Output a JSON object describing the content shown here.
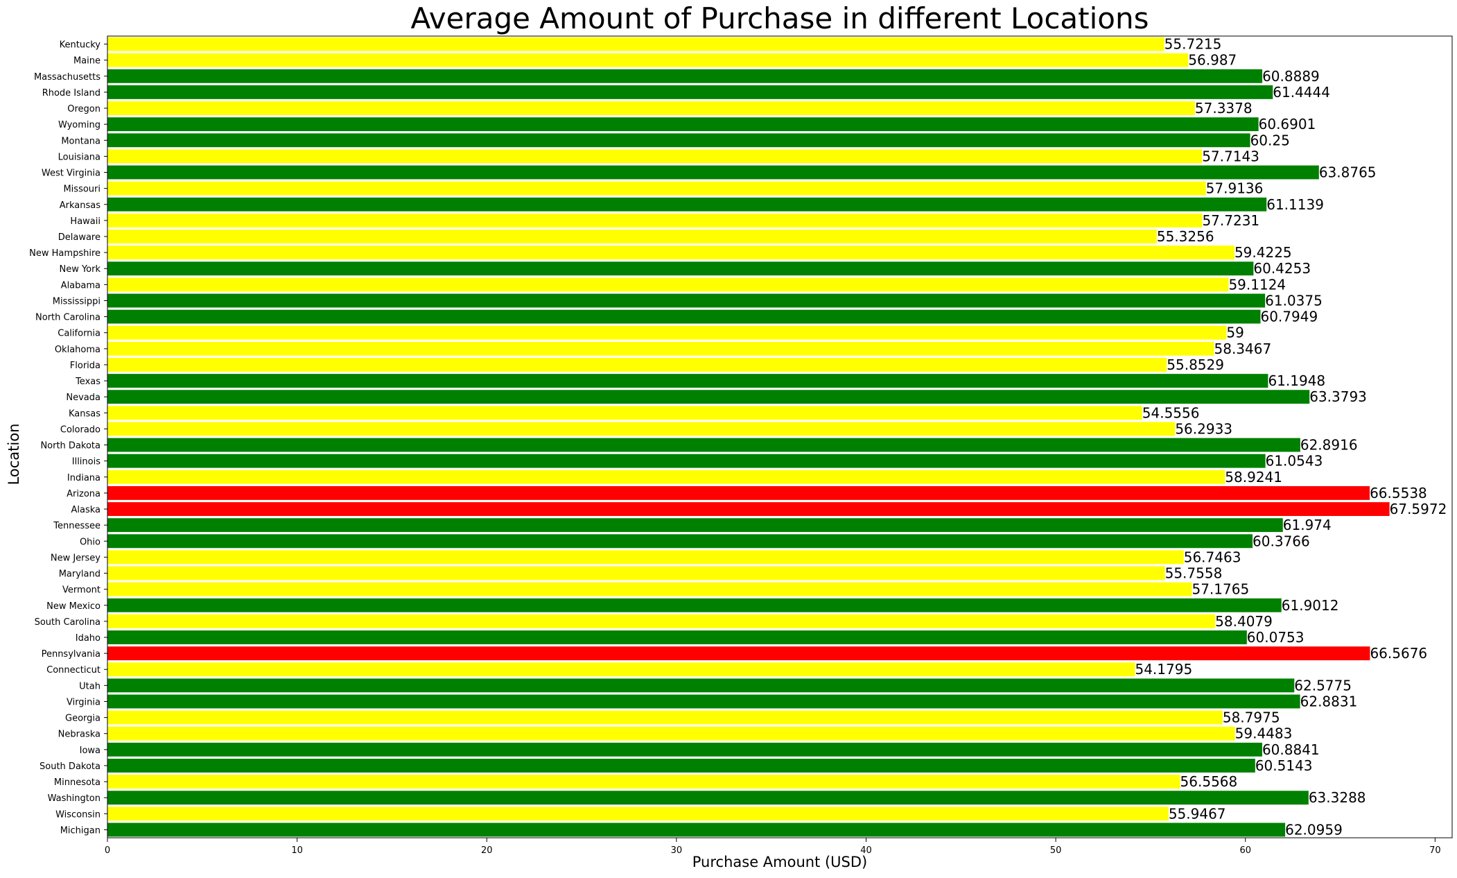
{
  "chart_data": {
    "type": "bar",
    "orientation": "horizontal",
    "title": "Average Amount of Purchase in different Locations",
    "xlabel": "Purchase Amount (USD)",
    "ylabel": "Location",
    "xlim": [
      0,
      70.9
    ],
    "xticks": [
      0,
      10,
      20,
      30,
      40,
      50,
      60,
      70
    ],
    "grid": false,
    "legend": "none",
    "colors": {
      "high": "#ff0000",
      "mid": "#008000",
      "low": "#ffff00"
    },
    "categories": [
      "Kentucky",
      "Maine",
      "Massachusetts",
      "Rhode Island",
      "Oregon",
      "Wyoming",
      "Montana",
      "Louisiana",
      "West Virginia",
      "Missouri",
      "Arkansas",
      "Hawaii",
      "Delaware",
      "New Hampshire",
      "New York",
      "Alabama",
      "Mississippi",
      "North Carolina",
      "California",
      "Oklahoma",
      "Florida",
      "Texas",
      "Nevada",
      "Kansas",
      "Colorado",
      "North Dakota",
      "Illinois",
      "Indiana",
      "Arizona",
      "Alaska",
      "Tennessee",
      "Ohio",
      "New Jersey",
      "Maryland",
      "Vermont",
      "New Mexico",
      "South Carolina",
      "Idaho",
      "Pennsylvania",
      "Connecticut",
      "Utah",
      "Virginia",
      "Georgia",
      "Nebraska",
      "Iowa",
      "South Dakota",
      "Minnesota",
      "Washington",
      "Wisconsin",
      "Michigan"
    ],
    "values": [
      55.7215,
      56.987,
      60.8889,
      61.4444,
      57.3378,
      60.6901,
      60.25,
      57.7143,
      63.8765,
      57.9136,
      61.1139,
      57.7231,
      55.3256,
      59.4225,
      60.4253,
      59.1124,
      61.0375,
      60.7949,
      59,
      58.3467,
      55.8529,
      61.1948,
      63.3793,
      54.5556,
      56.2933,
      62.8916,
      61.0543,
      58.9241,
      66.5538,
      67.5972,
      61.974,
      60.3766,
      56.7463,
      55.7558,
      57.1765,
      61.9012,
      58.4079,
      60.0753,
      66.5676,
      54.1795,
      62.5775,
      62.8831,
      58.7975,
      59.4483,
      60.8841,
      60.5143,
      56.5568,
      63.3288,
      55.9467,
      62.0959
    ],
    "value_labels": [
      "55.7215",
      "56.987",
      "60.8889",
      "61.4444",
      "57.3378",
      "60.6901",
      "60.25",
      "57.7143",
      "63.8765",
      "57.9136",
      "61.1139",
      "57.7231",
      "55.3256",
      "59.4225",
      "60.4253",
      "59.1124",
      "61.0375",
      "60.7949",
      "59",
      "58.3467",
      "55.8529",
      "61.1948",
      "63.3793",
      "54.5556",
      "56.2933",
      "62.8916",
      "61.0543",
      "58.9241",
      "66.5538",
      "67.5972",
      "61.974",
      "60.3766",
      "56.7463",
      "55.7558",
      "57.1765",
      "61.9012",
      "58.4079",
      "60.0753",
      "66.5676",
      "54.1795",
      "62.5775",
      "62.8831",
      "58.7975",
      "59.4483",
      "60.8841",
      "60.5143",
      "56.5568",
      "63.3288",
      "55.9467",
      "62.0959"
    ],
    "bar_colors": [
      "low",
      "low",
      "mid",
      "mid",
      "low",
      "mid",
      "mid",
      "low",
      "mid",
      "low",
      "mid",
      "low",
      "low",
      "low",
      "mid",
      "low",
      "mid",
      "mid",
      "low",
      "low",
      "low",
      "mid",
      "mid",
      "low",
      "low",
      "mid",
      "mid",
      "low",
      "high",
      "high",
      "mid",
      "mid",
      "low",
      "low",
      "low",
      "mid",
      "low",
      "mid",
      "high",
      "low",
      "mid",
      "mid",
      "low",
      "low",
      "mid",
      "mid",
      "low",
      "mid",
      "low",
      "mid"
    ]
  }
}
